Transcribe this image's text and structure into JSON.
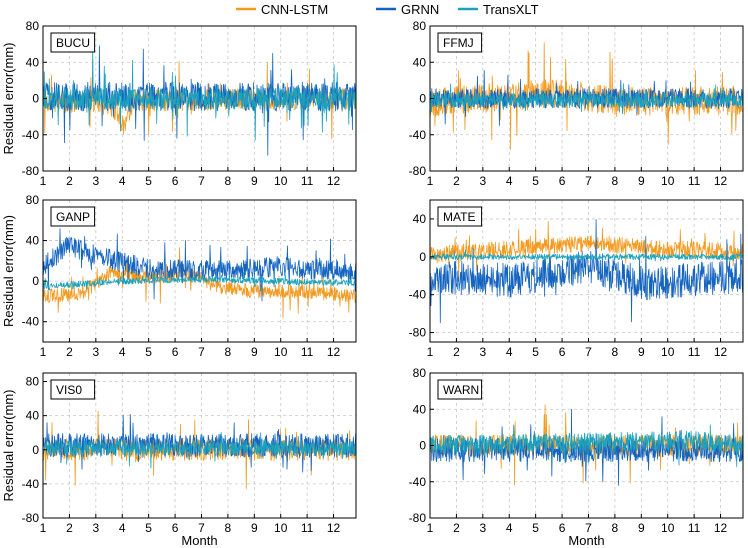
{
  "colors": {
    "cnn": "#F39A1F",
    "grnn": "#1565C0",
    "trans": "#1BA3BE"
  },
  "legend": [
    {
      "name": "CNN-LSTM",
      "color": "#F39A1F"
    },
    {
      "name": "GRNN",
      "color": "#1565C0"
    },
    {
      "name": "TransXLT",
      "color": "#1BA3BE"
    }
  ],
  "chart_data": [
    {
      "type": "line",
      "station": "BUCU",
      "xlabel": "",
      "ylabel": "Residual error(mm)",
      "xlim": [
        1,
        12.85
      ],
      "xticks": [
        1,
        2,
        3,
        4,
        5,
        6,
        7,
        8,
        9,
        10,
        11,
        12
      ],
      "ylim": [
        -80,
        80
      ],
      "yticks": [
        -80,
        -40,
        0,
        40,
        80
      ],
      "series": [
        {
          "name": "CNN-LSTM",
          "color": "#F39A1F",
          "amp": 12,
          "spike": 35,
          "base": [
            [
              1,
              -3
            ],
            [
              3,
              -4
            ],
            [
              3.6,
              -8
            ],
            [
              4.1,
              -30
            ],
            [
              4.4,
              -2
            ],
            [
              12.85,
              0
            ]
          ]
        },
        {
          "name": "GRNN",
          "color": "#1565C0",
          "amp": 16,
          "spike": 55,
          "base": [
            [
              1,
              2
            ],
            [
              12.85,
              2
            ]
          ]
        },
        {
          "name": "TransXLT",
          "color": "#1BA3BE",
          "amp": 12,
          "spike": 45,
          "base": [
            [
              1,
              0
            ],
            [
              12.85,
              0
            ]
          ]
        }
      ]
    },
    {
      "type": "line",
      "station": "FFMJ",
      "xlabel": "",
      "ylabel": "",
      "xlim": [
        1,
        12.85
      ],
      "xticks": [
        1,
        2,
        3,
        4,
        5,
        6,
        7,
        8,
        9,
        10,
        11,
        12
      ],
      "ylim": [
        -80,
        80
      ],
      "yticks": [
        -80,
        -40,
        0,
        40,
        80
      ],
      "series": [
        {
          "name": "CNN-LSTM",
          "color": "#F39A1F",
          "amp": 16,
          "spike": 55,
          "base": [
            [
              1,
              -4
            ],
            [
              6,
              6
            ],
            [
              8,
              -4
            ],
            [
              12.85,
              -2
            ]
          ]
        },
        {
          "name": "GRNN",
          "color": "#1565C0",
          "amp": 11,
          "spike": 30,
          "base": [
            [
              1,
              0
            ],
            [
              12.85,
              0
            ]
          ]
        },
        {
          "name": "TransXLT",
          "color": "#1BA3BE",
          "amp": 8,
          "spike": 18,
          "base": [
            [
              1,
              -2
            ],
            [
              12.85,
              -2
            ]
          ]
        }
      ]
    },
    {
      "type": "line",
      "station": "GANP",
      "xlabel": "",
      "ylabel": "Residual error(mm)",
      "xlim": [
        1,
        12.85
      ],
      "xticks": [
        1,
        2,
        3,
        4,
        5,
        6,
        7,
        8,
        9,
        10,
        11,
        12
      ],
      "ylim": [
        -60,
        80
      ],
      "yticks": [
        -40,
        0,
        40,
        80
      ],
      "series": [
        {
          "name": "CNN-LSTM",
          "color": "#F39A1F",
          "amp": 7,
          "spike": 22,
          "base": [
            [
              1,
              -15
            ],
            [
              2.5,
              -12
            ],
            [
              3.5,
              8
            ],
            [
              5,
              4
            ],
            [
              6.5,
              8
            ],
            [
              7.5,
              -5
            ],
            [
              9,
              -10
            ],
            [
              11,
              -10
            ],
            [
              12.85,
              -15
            ]
          ]
        },
        {
          "name": "GRNN",
          "color": "#1565C0",
          "amp": 10,
          "spike": 25,
          "base": [
            [
              1,
              15
            ],
            [
              2,
              35
            ],
            [
              3,
              25
            ],
            [
              5,
              12
            ],
            [
              8,
              10
            ],
            [
              10,
              15
            ],
            [
              12.85,
              8
            ]
          ]
        },
        {
          "name": "TransXLT",
          "color": "#1BA3BE",
          "amp": 3,
          "spike": 6,
          "base": [
            [
              1,
              -5
            ],
            [
              4,
              0
            ],
            [
              7,
              2
            ],
            [
              12.85,
              -2
            ]
          ]
        }
      ]
    },
    {
      "type": "line",
      "station": "MATE",
      "xlabel": "",
      "ylabel": "",
      "xlim": [
        1,
        12.85
      ],
      "xticks": [
        1,
        2,
        3,
        4,
        5,
        6,
        7,
        8,
        9,
        10,
        11,
        12
      ],
      "ylim": [
        -90,
        60
      ],
      "yticks": [
        -80,
        -40,
        0,
        40
      ],
      "series": [
        {
          "name": "CNN-LSTM",
          "color": "#F39A1F",
          "amp": 9,
          "spike": 25,
          "base": [
            [
              1,
              2
            ],
            [
              4,
              8
            ],
            [
              7,
              15
            ],
            [
              9,
              10
            ],
            [
              12.85,
              5
            ]
          ]
        },
        {
          "name": "GRNN",
          "color": "#1565C0",
          "amp": 18,
          "spike": 40,
          "base": [
            [
              1,
              -20
            ],
            [
              4,
              -25
            ],
            [
              7,
              -10
            ],
            [
              9,
              -28
            ],
            [
              12.85,
              -20
            ]
          ]
        },
        {
          "name": "TransXLT",
          "color": "#1BA3BE",
          "amp": 3,
          "spike": 5,
          "base": [
            [
              1,
              0
            ],
            [
              12.85,
              0
            ]
          ]
        }
      ]
    },
    {
      "type": "line",
      "station": "VIS0",
      "xlabel": "Month",
      "ylabel": "Residual error(mm)",
      "xlim": [
        1,
        12.85
      ],
      "xticks": [
        1,
        2,
        3,
        4,
        5,
        6,
        7,
        8,
        9,
        10,
        11,
        12
      ],
      "ylim": [
        -80,
        90
      ],
      "yticks": [
        -80,
        -40,
        0,
        40,
        80
      ],
      "series": [
        {
          "name": "CNN-LSTM",
          "color": "#F39A1F",
          "amp": 13,
          "spike": 45,
          "base": [
            [
              1,
              0
            ],
            [
              12.85,
              0
            ]
          ]
        },
        {
          "name": "GRNN",
          "color": "#1565C0",
          "amp": 14,
          "spike": 35,
          "base": [
            [
              1,
              5
            ],
            [
              12.85,
              5
            ]
          ]
        },
        {
          "name": "TransXLT",
          "color": "#1BA3BE",
          "amp": 9,
          "spike": 20,
          "base": [
            [
              1,
              2
            ],
            [
              12.85,
              2
            ]
          ]
        }
      ]
    },
    {
      "type": "line",
      "station": "WARN",
      "xlabel": "Month",
      "ylabel": "",
      "xlim": [
        1,
        12.85
      ],
      "xticks": [
        1,
        2,
        3,
        4,
        5,
        6,
        7,
        8,
        9,
        10,
        11,
        12
      ],
      "ylim": [
        -80,
        80
      ],
      "yticks": [
        -80,
        -40,
        0,
        40,
        80
      ],
      "series": [
        {
          "name": "CNN-LSTM",
          "color": "#F39A1F",
          "amp": 12,
          "spike": 45,
          "base": [
            [
              1,
              0
            ],
            [
              12.85,
              0
            ]
          ]
        },
        {
          "name": "GRNN",
          "color": "#1565C0",
          "amp": 13,
          "spike": 35,
          "base": [
            [
              1,
              -5
            ],
            [
              12.85,
              -5
            ]
          ]
        },
        {
          "name": "TransXLT",
          "color": "#1BA3BE",
          "amp": 11,
          "spike": 25,
          "base": [
            [
              1,
              0
            ],
            [
              11,
              5
            ],
            [
              12.85,
              0
            ]
          ]
        }
      ]
    }
  ]
}
